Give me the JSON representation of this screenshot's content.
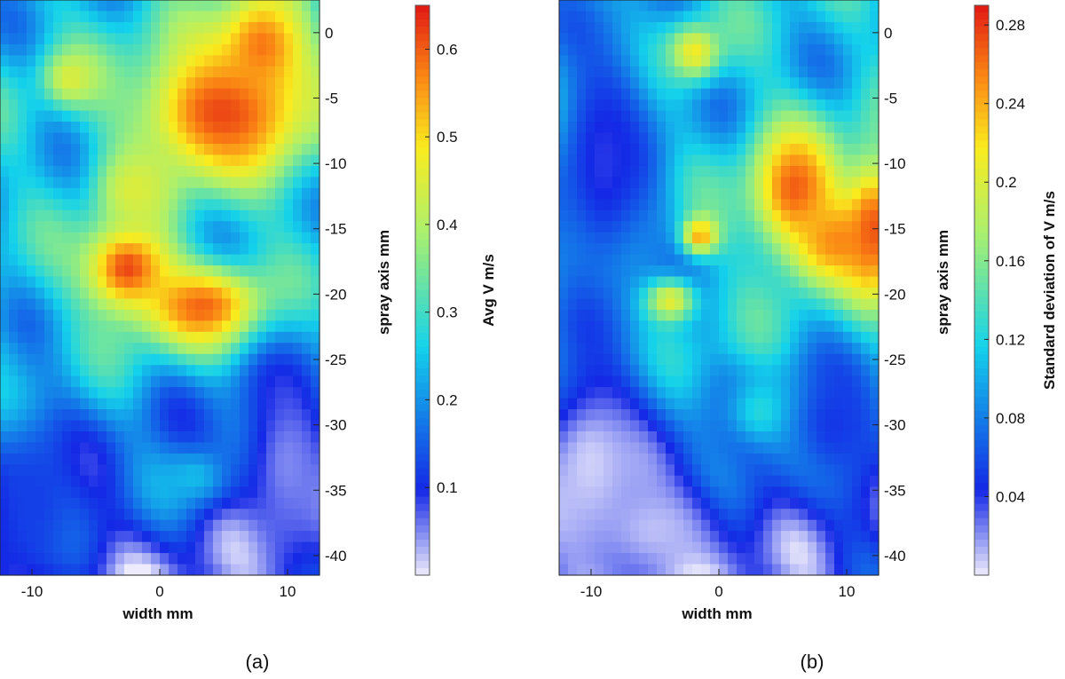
{
  "chart_data": [
    {
      "type": "heatmap",
      "panel_label": "(a)",
      "xlabel": "width mm",
      "ylabel": "spray axis mm",
      "colorbar_label": "Avg V m/s",
      "x_ticks": [
        -10,
        0,
        10
      ],
      "y_ticks": [
        0,
        -5,
        -10,
        -15,
        -20,
        -25,
        -30,
        -35,
        -40
      ],
      "xlim": [
        -12.5,
        12.5
      ],
      "ylim": [
        -41.5,
        2.5
      ],
      "colorbar_range": [
        0.0,
        0.65
      ],
      "colorbar_ticks": [
        0.1,
        0.2,
        0.3,
        0.4,
        0.5,
        0.6
      ],
      "colormap": "white-blue-cyan-yellow-red",
      "features": [
        {
          "kind": "peak",
          "x": 5,
          "y": -6,
          "sx": 5,
          "sy": 4,
          "value": 0.62
        },
        {
          "kind": "peak",
          "x": 8,
          "y": -1,
          "sx": 2.5,
          "sy": 3,
          "value": 0.58
        },
        {
          "kind": "peak",
          "x": -2.5,
          "y": -18,
          "sx": 2.5,
          "sy": 2.5,
          "value": 0.62
        },
        {
          "kind": "peak",
          "x": 3.5,
          "y": -21,
          "sx": 3.5,
          "sy": 2.2,
          "value": 0.6
        },
        {
          "kind": "peak",
          "x": -7,
          "y": -3.5,
          "sx": 1.5,
          "sy": 1.5,
          "value": 0.45
        },
        {
          "kind": "peak",
          "x": -2,
          "y": -12,
          "sx": 2,
          "sy": 2,
          "value": 0.45
        },
        {
          "kind": "peak",
          "x": 3,
          "y": -34,
          "sx": 2,
          "sy": 1.5,
          "value": 0.25
        },
        {
          "kind": "low",
          "x": 10,
          "y": -33,
          "sx": 3,
          "sy": 6,
          "value": 0.05
        },
        {
          "kind": "low",
          "x": -10,
          "y": -36,
          "sx": 3,
          "sy": 5,
          "value": 0.12
        }
      ]
    },
    {
      "type": "heatmap",
      "panel_label": "(b)",
      "xlabel": "width mm",
      "ylabel": "spray axis mm",
      "colorbar_label": "Standard deviation of V m/s",
      "x_ticks": [
        -10,
        0,
        10
      ],
      "y_ticks": [
        0,
        -5,
        -10,
        -15,
        -20,
        -25,
        -30,
        -35,
        -40
      ],
      "xlim": [
        -12.5,
        12.5
      ],
      "ylim": [
        -41.5,
        2.5
      ],
      "colorbar_range": [
        0.0,
        0.29
      ],
      "colorbar_ticks": [
        0.04,
        0.08,
        0.12,
        0.16,
        0.2,
        0.24,
        0.28
      ],
      "colormap": "white-blue-cyan-yellow-red",
      "features": [
        {
          "kind": "peak",
          "x": 6,
          "y": -12,
          "sx": 2.5,
          "sy": 3.5,
          "value": 0.27
        },
        {
          "kind": "peak",
          "x": 9,
          "y": -16,
          "sx": 2.5,
          "sy": 2.5,
          "value": 0.25
        },
        {
          "kind": "peak",
          "x": 12,
          "y": -15,
          "sx": 1.5,
          "sy": 4,
          "value": 0.27
        },
        {
          "kind": "peak",
          "x": -1.5,
          "y": -15.5,
          "sx": 1,
          "sy": 1,
          "value": 0.25
        },
        {
          "kind": "peak",
          "x": -4,
          "y": -20.5,
          "sx": 1.5,
          "sy": 1.2,
          "value": 0.23
        },
        {
          "kind": "peak",
          "x": -2,
          "y": -1.5,
          "sx": 1.5,
          "sy": 1.5,
          "value": 0.22
        },
        {
          "kind": "peak",
          "x": 4,
          "y": -29,
          "sx": 2.5,
          "sy": 2,
          "value": 0.14
        },
        {
          "kind": "low",
          "x": -10,
          "y": -33,
          "sx": 3.5,
          "sy": 6,
          "value": 0.005
        },
        {
          "kind": "low",
          "x": -5,
          "y": -38,
          "sx": 4,
          "sy": 3,
          "value": 0.01
        },
        {
          "kind": "low",
          "x": -9,
          "y": -10,
          "sx": 3,
          "sy": 8,
          "value": 0.04
        },
        {
          "kind": "low",
          "x": 9,
          "y": -30,
          "sx": 3,
          "sy": 4,
          "value": 0.05
        }
      ]
    }
  ]
}
